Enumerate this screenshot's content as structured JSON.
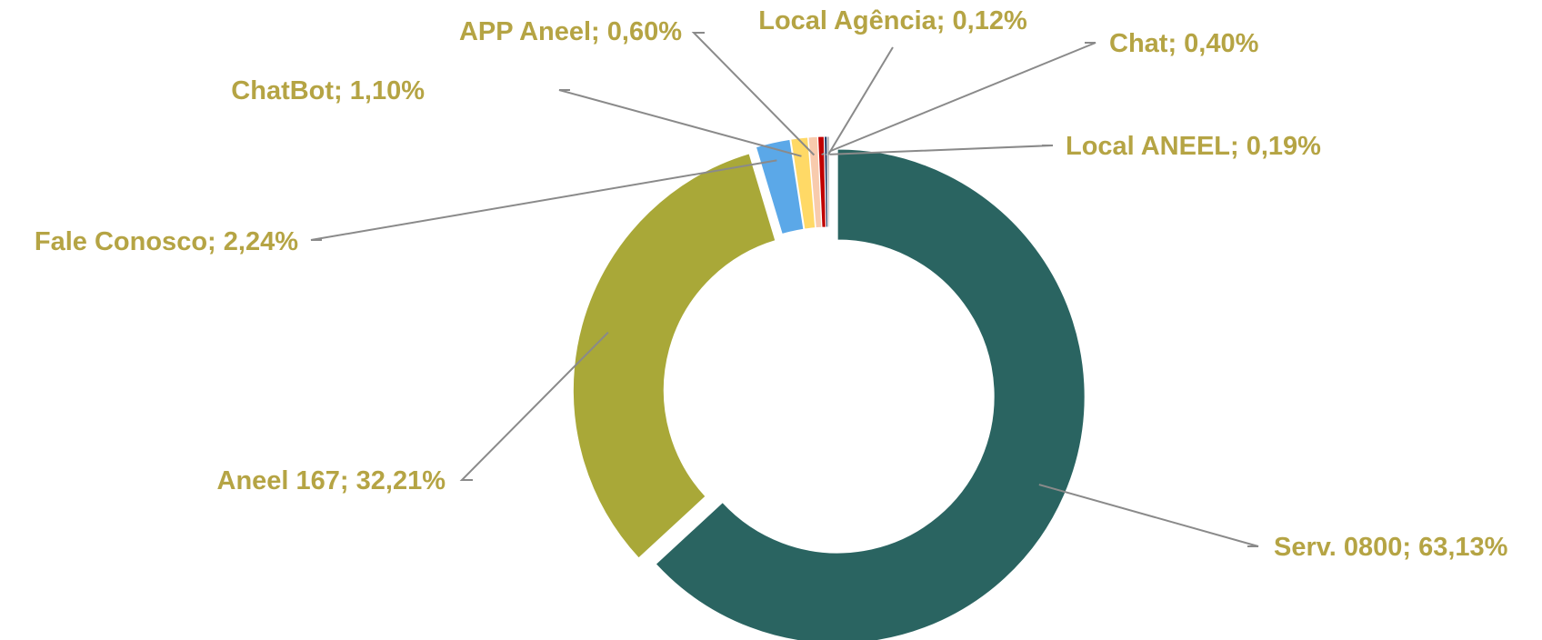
{
  "chart_data": {
    "type": "donut",
    "categories": [
      "Serv. 0800",
      "Aneel 167",
      "Fale Conosco",
      "ChatBot",
      "APP Aneel",
      "Chat",
      "Local ANEEL",
      "Local Agência"
    ],
    "values": [
      63.13,
      32.21,
      2.24,
      1.1,
      0.6,
      0.4,
      0.19,
      0.12
    ],
    "value_labels": [
      "63,13%",
      "32,21%",
      "2,24%",
      "1,10%",
      "0,60%",
      "0,40%",
      "0,19%",
      "0,12%"
    ],
    "label_separator": "; ",
    "colors": [
      "#2a6461",
      "#a9a838",
      "#5ba8e8",
      "#ffd966",
      "#f8cbad",
      "#c00000",
      "#1f3864",
      "#7f7f7f"
    ]
  }
}
